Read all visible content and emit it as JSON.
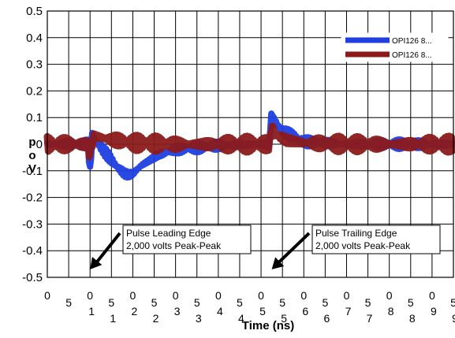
{
  "chart_data": {
    "type": "line",
    "xlabel": "Time (ns)",
    "ylabel": "p\no\nV",
    "ylim": [
      -0.5,
      0.5
    ],
    "xlim": [
      0,
      95
    ],
    "yticks": [
      "0.5",
      "0.4",
      "0.3",
      "0.2",
      "0.1",
      "0",
      "-0.1",
      "-0.2",
      "-0.3",
      "-0.4",
      "-0.5"
    ],
    "xticks": [
      {
        "a": "0",
        "b": ""
      },
      {
        "a": "5",
        "b": ""
      },
      {
        "a": "0",
        "b": "1"
      },
      {
        "a": "5",
        "b": "1"
      },
      {
        "a": "0",
        "b": "2"
      },
      {
        "a": "5",
        "b": "2"
      },
      {
        "a": "0",
        "b": "3"
      },
      {
        "a": "5",
        "b": "3"
      },
      {
        "a": "0",
        "b": "4"
      },
      {
        "a": "5",
        "b": "4"
      },
      {
        "a": "0",
        "b": "5"
      },
      {
        "a": "5",
        "b": "5"
      },
      {
        "a": "0",
        "b": "6"
      },
      {
        "a": "5",
        "b": "6"
      },
      {
        "a": "0",
        "b": "7"
      },
      {
        "a": "5",
        "b": "7"
      },
      {
        "a": "0",
        "b": "8"
      },
      {
        "a": "5",
        "b": "8"
      },
      {
        "a": "0",
        "b": "9"
      },
      {
        "a": "5",
        "b": "9"
      }
    ],
    "grid": true,
    "legend_position": "top-right",
    "series": [
      {
        "name": "OPI126 8...",
        "color": "#1f3fe0",
        "band": 0.012,
        "x": [
          0,
          8,
          9.5,
          10,
          10.5,
          12,
          14,
          16,
          18,
          19,
          20,
          22,
          26,
          30,
          40,
          49,
          52,
          52.4,
          53,
          55,
          60,
          65,
          70,
          80,
          90,
          95
        ],
        "y": [
          0,
          0,
          0,
          -0.1,
          0.03,
          0,
          -0.04,
          -0.08,
          -0.11,
          -0.115,
          -0.11,
          -0.08,
          -0.04,
          -0.02,
          -0.005,
          0,
          0,
          0.11,
          0.09,
          0.05,
          0.01,
          0.005,
          0,
          0,
          0,
          0
        ]
      },
      {
        "name": "OPI126 8...",
        "color": "#8b1a1a",
        "band": 0.02,
        "x": [
          0,
          9.5,
          9.8,
          10.2,
          11,
          14,
          20,
          30,
          40,
          50,
          52,
          52.4,
          53,
          56,
          60,
          70,
          80,
          95
        ],
        "y": [
          0,
          0,
          -0.06,
          -0.02,
          0.03,
          0.02,
          0.005,
          0,
          0,
          0,
          0,
          0.05,
          0.04,
          0.015,
          0.005,
          0,
          0,
          0
        ]
      }
    ],
    "annotations": [
      {
        "lines": [
          "Pulse Leading Edge",
          "2,000 volts Peak-Peak"
        ],
        "arrow_to_x": 10,
        "arrow_to_y": -0.47
      },
      {
        "lines": [
          "Pulse Trailing  Edge",
          "2,000 volts Peak-Peak"
        ],
        "arrow_to_x": 52.5,
        "arrow_to_y": -0.47
      }
    ]
  }
}
